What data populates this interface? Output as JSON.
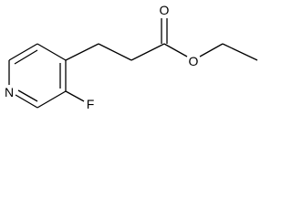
{
  "atoms": {
    "ring_nitrogen": "N",
    "fluorine": "F",
    "carbonyl_oxygen": "O",
    "ester_oxygen": "O"
  }
}
